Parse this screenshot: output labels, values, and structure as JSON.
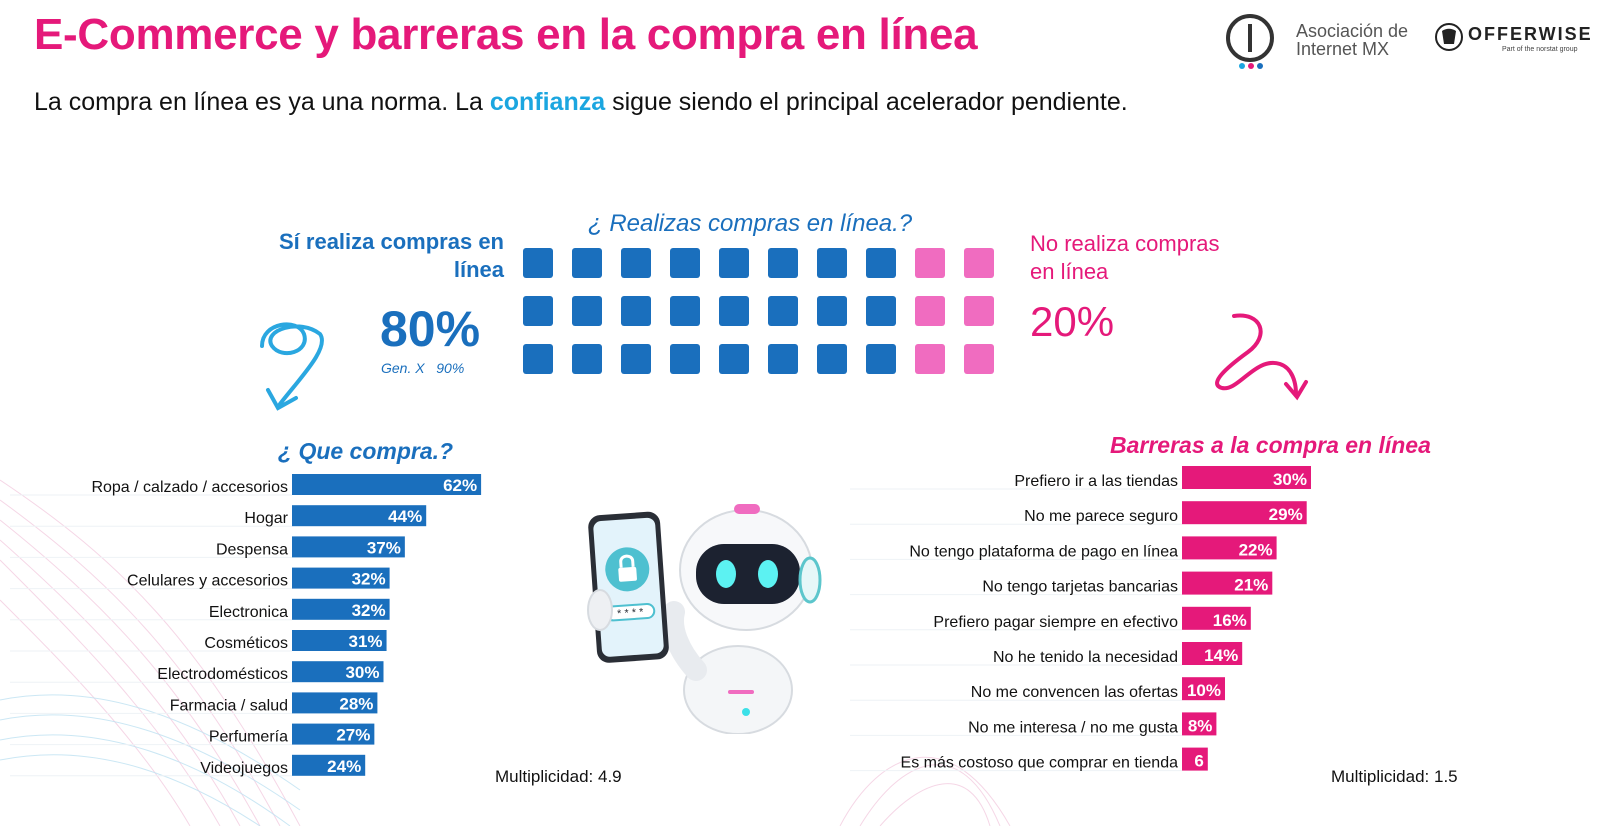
{
  "header": {
    "title": "E-Commerce y barreras en la compra en línea",
    "subtitle_pre": "La compra en línea es ya una norma. La ",
    "subtitle_highlight": "confianza",
    "subtitle_post": " sigue siendo el principal acelerador pendiente."
  },
  "logos": {
    "amx_line1": "Asociación de",
    "amx_line2": "Internet MX",
    "ow_name": "OFFERWISE",
    "ow_tagline": "Part of the norstat group"
  },
  "colors": {
    "brand_pink": "#e5197a",
    "brand_blue": "#1a6fbd",
    "highlight_cyan": "#1ba6e0",
    "waffle_no": "#f06cc0"
  },
  "survey": {
    "question": "¿ Realizas compras en línea.?",
    "yes_label": "Sí realiza compras en línea",
    "yes_pct": "80%",
    "genx_note": "Gen. X   90%",
    "no_label": "No realiza compras en línea",
    "no_pct": "20%"
  },
  "chart_data": [
    {
      "type": "bar",
      "orientation": "horizontal",
      "title": "¿ Que compra.?",
      "categories": [
        "Ropa / calzado / accesorios",
        "Hogar",
        "Despensa",
        "Celulares y accesorios",
        "Electronica",
        "Cosméticos",
        "Electrodomésticos",
        "Farmacia / salud",
        "Perfumería",
        "Videojuegos"
      ],
      "values": [
        62,
        44,
        37,
        32,
        32,
        31,
        30,
        28,
        27,
        24
      ],
      "value_labels": [
        "62%",
        "44%",
        "37%",
        "32%",
        "32%",
        "31%",
        "30%",
        "28%",
        "27%",
        "24%"
      ],
      "color": "#1a6fbd",
      "note": "Multiplicidad: 4.9"
    },
    {
      "type": "bar",
      "orientation": "horizontal",
      "title": "Barreras a la compra en línea",
      "categories": [
        "Prefiero ir a las tiendas",
        "No me parece seguro",
        "No tengo plataforma de pago en línea",
        "No tengo tarjetas bancarias",
        "Prefiero pagar siempre en efectivo",
        "No he tenido la necesidad",
        "No me convencen las ofertas",
        "No me interesa / no me gusta",
        "Es más costoso que comprar en tienda"
      ],
      "values": [
        30,
        29,
        22,
        21,
        16,
        14,
        10,
        8,
        6
      ],
      "value_labels": [
        "30%",
        "29%",
        "22%",
        "21%",
        "16%",
        "14%",
        "10%",
        "8%",
        "6"
      ],
      "color": "#e5197a",
      "note": "Multiplicidad: 1.5"
    },
    {
      "type": "waffle",
      "title": "¿ Realizas compras en línea.?",
      "rows": 3,
      "cols": 10,
      "categories": [
        "Sí realiza compras en línea",
        "No realiza compras en línea"
      ],
      "values": [
        80,
        20
      ]
    }
  ]
}
